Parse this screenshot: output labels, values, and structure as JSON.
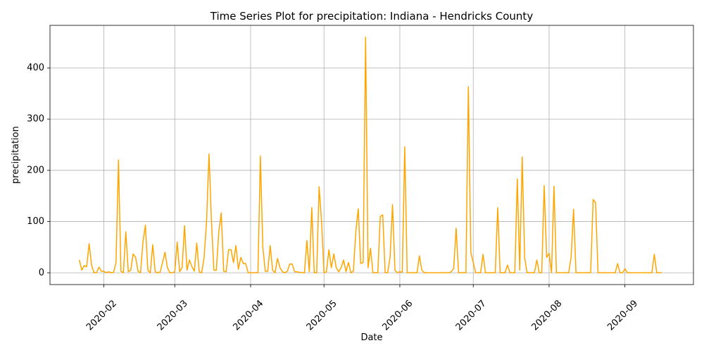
{
  "chart_data": {
    "type": "line",
    "title": "Time Series Plot for precipitation: Indiana - Hendricks County",
    "x_label": "Date",
    "y_label": "precipitation",
    "x": [
      "2020-01-22",
      "2020-01-23",
      "2020-01-24",
      "2020-01-25",
      "2020-01-26",
      "2020-01-27",
      "2020-01-28",
      "2020-01-29",
      "2020-01-30",
      "2020-01-31",
      "2020-02-01",
      "2020-02-02",
      "2020-02-03",
      "2020-02-04",
      "2020-02-05",
      "2020-02-06",
      "2020-02-07",
      "2020-02-08",
      "2020-02-09",
      "2020-02-10",
      "2020-02-11",
      "2020-02-12",
      "2020-02-13",
      "2020-02-14",
      "2020-02-15",
      "2020-02-16",
      "2020-02-17",
      "2020-02-18",
      "2020-02-19",
      "2020-02-20",
      "2020-02-21",
      "2020-02-22",
      "2020-02-23",
      "2020-02-24",
      "2020-02-25",
      "2020-02-26",
      "2020-02-27",
      "2020-02-28",
      "2020-02-29",
      "2020-03-01",
      "2020-03-02",
      "2020-03-03",
      "2020-03-04",
      "2020-03-05",
      "2020-03-06",
      "2020-03-07",
      "2020-03-08",
      "2020-03-09",
      "2020-03-10",
      "2020-03-11",
      "2020-03-12",
      "2020-03-13",
      "2020-03-14",
      "2020-03-15",
      "2020-03-16",
      "2020-03-17",
      "2020-03-18",
      "2020-03-19",
      "2020-03-20",
      "2020-03-21",
      "2020-03-22",
      "2020-03-23",
      "2020-03-24",
      "2020-03-25",
      "2020-03-26",
      "2020-03-27",
      "2020-03-28",
      "2020-03-29",
      "2020-03-30",
      "2020-03-31",
      "2020-04-01",
      "2020-04-02",
      "2020-04-03",
      "2020-04-04",
      "2020-04-05",
      "2020-04-06",
      "2020-04-07",
      "2020-04-08",
      "2020-04-09",
      "2020-04-10",
      "2020-04-11",
      "2020-04-12",
      "2020-04-13",
      "2020-04-14",
      "2020-04-15",
      "2020-04-16",
      "2020-04-17",
      "2020-04-18",
      "2020-04-19",
      "2020-04-20",
      "2020-04-21",
      "2020-04-22",
      "2020-04-23",
      "2020-04-24",
      "2020-04-25",
      "2020-04-26",
      "2020-04-27",
      "2020-04-28",
      "2020-04-29",
      "2020-04-30",
      "2020-05-01",
      "2020-05-02",
      "2020-05-03",
      "2020-05-04",
      "2020-05-05",
      "2020-05-06",
      "2020-05-07",
      "2020-05-08",
      "2020-05-09",
      "2020-05-10",
      "2020-05-11",
      "2020-05-12",
      "2020-05-13",
      "2020-05-14",
      "2020-05-15",
      "2020-05-16",
      "2020-05-17",
      "2020-05-18",
      "2020-05-19",
      "2020-05-20",
      "2020-05-21",
      "2020-05-22",
      "2020-05-23",
      "2020-05-24",
      "2020-05-25",
      "2020-05-26",
      "2020-05-27",
      "2020-05-28",
      "2020-05-29",
      "2020-05-30",
      "2020-05-31",
      "2020-06-01",
      "2020-06-02",
      "2020-06-03",
      "2020-06-04",
      "2020-06-05",
      "2020-06-06",
      "2020-06-07",
      "2020-06-08",
      "2020-06-09",
      "2020-06-10",
      "2020-06-11",
      "2020-06-12",
      "2020-06-13",
      "2020-06-14",
      "2020-06-15",
      "2020-06-16",
      "2020-06-17",
      "2020-06-18",
      "2020-06-19",
      "2020-06-20",
      "2020-06-21",
      "2020-06-22",
      "2020-06-23",
      "2020-06-24",
      "2020-06-25",
      "2020-06-26",
      "2020-06-27",
      "2020-06-28",
      "2020-06-29",
      "2020-06-30",
      "2020-07-01",
      "2020-07-02",
      "2020-07-03",
      "2020-07-04",
      "2020-07-05",
      "2020-07-06",
      "2020-07-07",
      "2020-07-08",
      "2020-07-09",
      "2020-07-10",
      "2020-07-11",
      "2020-07-12",
      "2020-07-13",
      "2020-07-14",
      "2020-07-15",
      "2020-07-16",
      "2020-07-17",
      "2020-07-18",
      "2020-07-19",
      "2020-07-20",
      "2020-07-21",
      "2020-07-22",
      "2020-07-23",
      "2020-07-24",
      "2020-07-25",
      "2020-07-26",
      "2020-07-27",
      "2020-07-28",
      "2020-07-29",
      "2020-07-30",
      "2020-07-31",
      "2020-08-01",
      "2020-08-02",
      "2020-08-03",
      "2020-08-04",
      "2020-08-05",
      "2020-08-06",
      "2020-08-07",
      "2020-08-08",
      "2020-08-09",
      "2020-08-10",
      "2020-08-11",
      "2020-08-12",
      "2020-08-13",
      "2020-08-14",
      "2020-08-15",
      "2020-08-16",
      "2020-08-17",
      "2020-08-18",
      "2020-08-19",
      "2020-08-20",
      "2020-08-21",
      "2020-08-22",
      "2020-08-23",
      "2020-08-24",
      "2020-08-25",
      "2020-08-26",
      "2020-08-27",
      "2020-08-28",
      "2020-08-29",
      "2020-08-30",
      "2020-08-31",
      "2020-09-01",
      "2020-09-02",
      "2020-09-03",
      "2020-09-04",
      "2020-09-05",
      "2020-09-06",
      "2020-09-07",
      "2020-09-08",
      "2020-09-09",
      "2020-09-10",
      "2020-09-11",
      "2020-09-12",
      "2020-09-13",
      "2020-09-14",
      "2020-09-15",
      "2020-09-16"
    ],
    "series": [
      {
        "name": "precipitation",
        "color": "#ffa500",
        "values": [
          25,
          5,
          14,
          12,
          57,
          15,
          0,
          0,
          11,
          3,
          3,
          0,
          2,
          0,
          1,
          20,
          220,
          3,
          0,
          80,
          2,
          5,
          37,
          30,
          3,
          0,
          60,
          93,
          5,
          0,
          55,
          2,
          0,
          1,
          20,
          40,
          10,
          0,
          0,
          2,
          60,
          2,
          10,
          92,
          5,
          25,
          12,
          3,
          58,
          2,
          0,
          30,
          100,
          232,
          100,
          5,
          5,
          80,
          117,
          3,
          2,
          45,
          45,
          20,
          53,
          7,
          30,
          18,
          18,
          0,
          0,
          0,
          0,
          0,
          228,
          50,
          3,
          3,
          53,
          5,
          0,
          28,
          10,
          2,
          0,
          3,
          17,
          17,
          2,
          2,
          1,
          0,
          0,
          63,
          2,
          127,
          0,
          0,
          168,
          100,
          0,
          2,
          45,
          10,
          37,
          10,
          2,
          10,
          25,
          2,
          20,
          0,
          3,
          80,
          125,
          18,
          20,
          460,
          10,
          48,
          0,
          0,
          0,
          110,
          113,
          0,
          0,
          30,
          133,
          5,
          0,
          2,
          1,
          246,
          0,
          0,
          0,
          0,
          0,
          33,
          5,
          0,
          0,
          0,
          0,
          0,
          0,
          0,
          0,
          0,
          0,
          0,
          2,
          8,
          87,
          0,
          0,
          0,
          0,
          363,
          40,
          20,
          0,
          0,
          0,
          36,
          0,
          0,
          0,
          0,
          0,
          127,
          0,
          0,
          0,
          15,
          0,
          0,
          0,
          183,
          5,
          226,
          30,
          0,
          0,
          0,
          0,
          25,
          0,
          0,
          170,
          30,
          38,
          0,
          169,
          0,
          0,
          0,
          0,
          0,
          0,
          30,
          124,
          0,
          0,
          0,
          0,
          0,
          0,
          0,
          143,
          137,
          0,
          0,
          0,
          0,
          0,
          0,
          0,
          0,
          18,
          0,
          0,
          8,
          0,
          0,
          0,
          0,
          0,
          0,
          0,
          0,
          0,
          0,
          0,
          36,
          0,
          0,
          0
        ]
      }
    ],
    "xlim": [
      "2020-01-10",
      "2020-09-29"
    ],
    "xticks": [
      {
        "value": "2020-02-01",
        "label": "2020-02"
      },
      {
        "value": "2020-03-01",
        "label": "2020-03"
      },
      {
        "value": "2020-04-01",
        "label": "2020-04"
      },
      {
        "value": "2020-05-01",
        "label": "2020-05"
      },
      {
        "value": "2020-06-01",
        "label": "2020-06"
      },
      {
        "value": "2020-07-01",
        "label": "2020-07"
      },
      {
        "value": "2020-08-01",
        "label": "2020-08"
      },
      {
        "value": "2020-09-01",
        "label": "2020-09"
      }
    ],
    "ylim": [
      -23,
      483
    ],
    "yticks": [
      0,
      100,
      200,
      300,
      400
    ],
    "grid": true
  }
}
